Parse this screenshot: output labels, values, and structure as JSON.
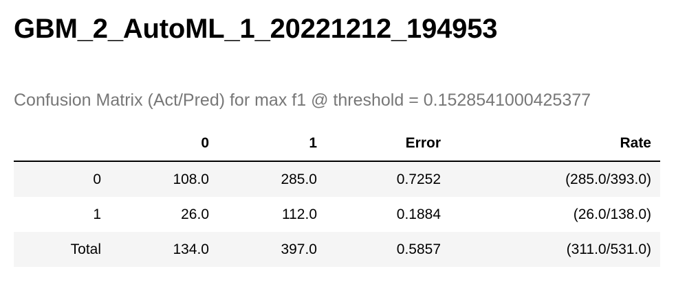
{
  "title": "GBM_2_AutoML_1_20221212_194953",
  "caption": "Confusion Matrix (Act/Pred) for max f1 @ threshold = 0.1528541000425377",
  "table": {
    "headers": [
      "",
      "0",
      "1",
      "Error",
      "Rate"
    ],
    "rows": [
      [
        "0",
        "108.0",
        "285.0",
        "0.7252",
        "(285.0/393.0)"
      ],
      [
        "1",
        "26.0",
        "112.0",
        "0.1884",
        "(26.0/138.0)"
      ],
      [
        "Total",
        "134.0",
        "397.0",
        "0.5857",
        "(311.0/531.0)"
      ]
    ]
  },
  "colors": {
    "caption": "#777777",
    "stripe": "#f5f5f5",
    "header_rule": "#000000"
  }
}
